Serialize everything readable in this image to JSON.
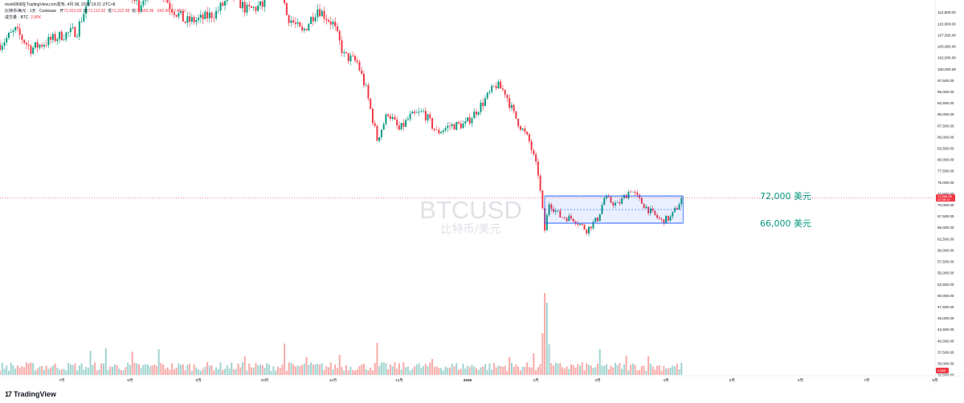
{
  "header": {
    "line1": "mxin0808在TradingView.com发布, 4月 08, 2026 19:21 UTC+8",
    "symbol_desc": "比特币/美元 · 1天 · Coinbase",
    "open_label": "开",
    "open": "71,910.92",
    "high_label": "高",
    "high": "72,113.92",
    "low_label": "低",
    "low": "71,322.98",
    "close_label": "收",
    "close": "71,566.96",
    "change": "-343.96 (-0.48%)",
    "volume_label": "成交量 · BTC",
    "volume": "2.86K"
  },
  "watermark": {
    "symbol": "BTCUSD",
    "name": "比特币/美元"
  },
  "price_labels": {
    "current": "71,566.96",
    "countdown": "12:38:13",
    "volume": "2.86K"
  },
  "footer": {
    "logo_mark": "17",
    "brand": "TradingView"
  },
  "colors": {
    "up": "#089981",
    "down": "#f23645",
    "vol_up": "#9fd3cf",
    "vol_down": "#f7a9a7",
    "box": "#2962ff",
    "level_text": "#089981"
  },
  "chart_data": {
    "type": "candlestick",
    "title": "BTCUSD",
    "subtitle": "比特币/美元",
    "y_ticks": [
      "112,500.00",
      "110,000.00",
      "107,500.00",
      "105,000.00",
      "102,500.00",
      "100,000.00",
      "97,500.00",
      "95,000.00",
      "92,500.00",
      "90,000.00",
      "87,500.00",
      "85,000.00",
      "82,500.00",
      "80,000.00",
      "77,500.00",
      "75,000.00",
      "72,500.00",
      "70,000.00",
      "67,500.00",
      "65,000.00",
      "62,500.00",
      "60,000.00",
      "57,500.00",
      "55,000.00",
      "52,500.00",
      "50,000.00",
      "47,500.00",
      "45,000.00",
      "42,500.00",
      "40,000.00",
      "37,500.00",
      "35,000.00",
      "32,500.00"
    ],
    "ylim": [
      32500,
      113500
    ],
    "x_ticks": [
      "7月",
      "8月",
      "9月",
      "10月",
      "11月",
      "12月",
      "2026",
      "2月",
      "3月",
      "4月",
      "5月",
      "6月",
      "7月",
      "8月"
    ],
    "x_tick_dates": [
      "2025-07-01",
      "2025-08-01",
      "2025-09-01",
      "2025-10-01",
      "2025-11-01",
      "2025-12-01",
      "2026-01-01",
      "2026-02-01",
      "2026-03-01",
      "2026-04-01",
      "2026-05-01",
      "2026-06-01",
      "2026-07-01",
      "2026-08-01"
    ],
    "x_range": [
      "2025-06-03",
      "2026-08-01"
    ],
    "last_date": "2026-04-08",
    "volume_scale_max": 6000,
    "series_price": [
      {
        "date": "2025-06-03",
        "close": 105500
      },
      {
        "date": "2025-06-10",
        "close": 108500
      },
      {
        "date": "2025-06-17",
        "close": 104500
      },
      {
        "date": "2025-06-24",
        "close": 106000
      },
      {
        "date": "2025-07-01",
        "close": 107500
      },
      {
        "date": "2025-07-08",
        "close": 108500
      },
      {
        "date": "2025-07-15",
        "close": 118000
      },
      {
        "date": "2025-07-22",
        "close": 118500
      },
      {
        "date": "2025-07-29",
        "close": 117500
      },
      {
        "date": "2025-08-05",
        "close": 114000
      },
      {
        "date": "2025-08-12",
        "close": 120500
      },
      {
        "date": "2025-08-19",
        "close": 114000
      },
      {
        "date": "2025-08-26",
        "close": 110500
      },
      {
        "date": "2025-09-02",
        "close": 111000
      },
      {
        "date": "2025-09-09",
        "close": 112500
      },
      {
        "date": "2025-09-16",
        "close": 116500
      },
      {
        "date": "2025-09-23",
        "close": 113000
      },
      {
        "date": "2025-09-30",
        "close": 114000
      },
      {
        "date": "2025-10-06",
        "close": 124000
      },
      {
        "date": "2025-10-11",
        "close": 112000
      },
      {
        "date": "2025-10-18",
        "close": 108000
      },
      {
        "date": "2025-10-25",
        "close": 113500
      },
      {
        "date": "2025-11-01",
        "close": 110000
      },
      {
        "date": "2025-11-06",
        "close": 103000
      },
      {
        "date": "2025-11-12",
        "close": 101500
      },
      {
        "date": "2025-11-16",
        "close": 95500
      },
      {
        "date": "2025-11-21",
        "close": 84500
      },
      {
        "date": "2025-11-26",
        "close": 90500
      },
      {
        "date": "2025-12-01",
        "close": 86500
      },
      {
        "date": "2025-12-06",
        "close": 89500
      },
      {
        "date": "2025-12-12",
        "close": 90500
      },
      {
        "date": "2025-12-18",
        "close": 86000
      },
      {
        "date": "2025-12-24",
        "close": 87500
      },
      {
        "date": "2025-12-31",
        "close": 87800
      },
      {
        "date": "2026-01-07",
        "close": 92000
      },
      {
        "date": "2026-01-14",
        "close": 96500
      },
      {
        "date": "2026-01-18",
        "close": 95000
      },
      {
        "date": "2026-01-22",
        "close": 90000
      },
      {
        "date": "2026-01-29",
        "close": 84000
      },
      {
        "date": "2026-02-02",
        "close": 77000
      },
      {
        "date": "2026-02-05",
        "close": 64500
      },
      {
        "date": "2026-02-07",
        "close": 70500
      },
      {
        "date": "2026-02-12",
        "close": 67500
      },
      {
        "date": "2026-02-18",
        "close": 67000
      },
      {
        "date": "2026-02-24",
        "close": 64500
      },
      {
        "date": "2026-03-01",
        "close": 67000
      },
      {
        "date": "2026-03-04",
        "close": 71500
      },
      {
        "date": "2026-03-10",
        "close": 70000
      },
      {
        "date": "2026-03-16",
        "close": 73500
      },
      {
        "date": "2026-03-20",
        "close": 71000
      },
      {
        "date": "2026-03-26",
        "close": 68000
      },
      {
        "date": "2026-03-30",
        "close": 66500
      },
      {
        "date": "2026-04-03",
        "close": 67200
      },
      {
        "date": "2026-04-06",
        "close": 69500
      },
      {
        "date": "2026-04-08",
        "close": 71567
      }
    ],
    "volume_peaks": [
      {
        "date": "2025-07-14",
        "value": 1500
      },
      {
        "date": "2025-07-21",
        "value": 1650
      },
      {
        "date": "2025-08-02",
        "value": 1450
      },
      {
        "date": "2025-08-14",
        "value": 1600
      },
      {
        "date": "2025-09-22",
        "value": 1150
      },
      {
        "date": "2025-10-10",
        "value": 1950
      },
      {
        "date": "2025-10-20",
        "value": 1100
      },
      {
        "date": "2025-11-04",
        "value": 1250
      },
      {
        "date": "2025-11-21",
        "value": 2000
      },
      {
        "date": "2025-12-16",
        "value": 1000
      },
      {
        "date": "2026-01-20",
        "value": 1100
      },
      {
        "date": "2026-01-31",
        "value": 1350
      },
      {
        "date": "2026-02-04",
        "value": 2600
      },
      {
        "date": "2026-02-05",
        "value": 5100
      },
      {
        "date": "2026-02-06",
        "value": 4500
      },
      {
        "date": "2026-02-07",
        "value": 1900
      },
      {
        "date": "2026-03-02",
        "value": 1600
      },
      {
        "date": "2026-03-14",
        "value": 1200
      },
      {
        "date": "2026-03-24",
        "value": 1150
      }
    ],
    "range_box": {
      "start": "2026-02-05",
      "end": "2026-04-08",
      "top": 72000,
      "bottom": 66000,
      "mid": 69000
    },
    "annotations": [
      "72,000 美元",
      "66,000 美元"
    ],
    "level_values": [
      72000,
      66000
    ],
    "last_price": 71566.96,
    "grid": false
  }
}
